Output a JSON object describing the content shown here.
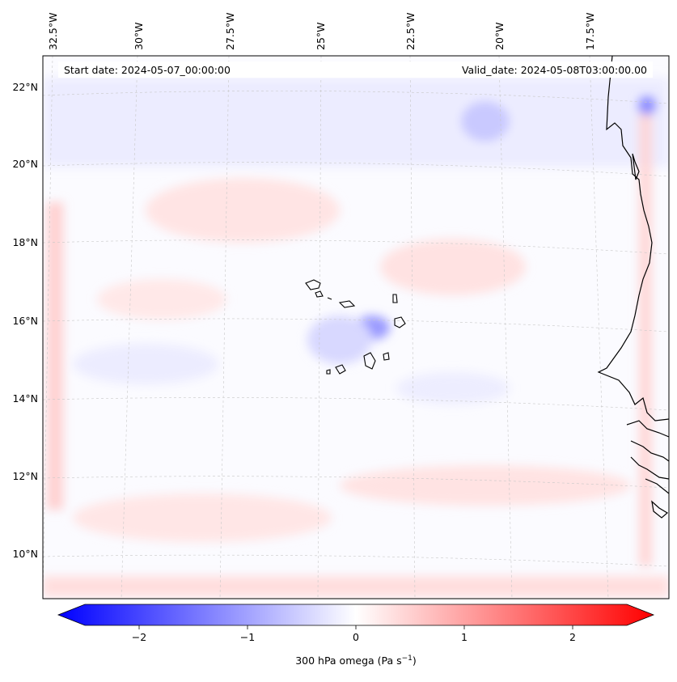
{
  "map": {
    "start_label": "Start date: 2024-05-07_00:00:00",
    "valid_label": "Valid_date: 2024-05-08T03:00:00.00",
    "lon_labels": [
      "32.5°W",
      "30°W",
      "27.5°W",
      "25°W",
      "22.5°W",
      "20°W",
      "17.5°W"
    ],
    "lat_labels": [
      "22°N",
      "20°N",
      "18°N",
      "16°N",
      "14°N",
      "12°N",
      "10°N"
    ],
    "features": [
      "Cape Verde islands",
      "West African coastline"
    ]
  },
  "colorbar": {
    "label_main": "300 hPa omega (Pa s",
    "label_exp": "−1",
    "label_close": ")",
    "ticks": [
      "−2",
      "−1",
      "0",
      "1",
      "2"
    ],
    "tick_values": [
      -2,
      -1,
      0,
      1,
      2
    ],
    "range": [
      -2.5,
      2.5
    ],
    "colors": {
      "neg": "#0000ff",
      "mid": "#ffffff",
      "pos": "#ff0000"
    }
  }
}
